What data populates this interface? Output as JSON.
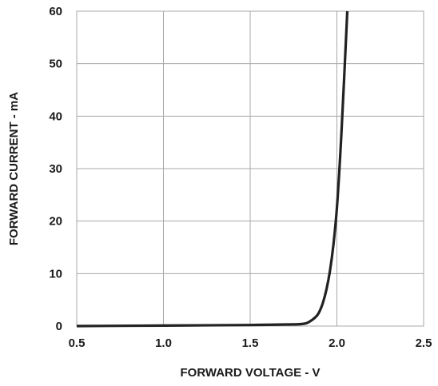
{
  "chart_data": {
    "type": "line",
    "title": "",
    "xlabel": "FORWARD VOLTAGE - V",
    "ylabel": "FORWARD CURRENT - mA",
    "xlim": [
      0.5,
      2.5
    ],
    "ylim": [
      0,
      60
    ],
    "x_ticks": [
      "0.5",
      "1.0",
      "1.5",
      "2.0",
      "2.5"
    ],
    "y_ticks": [
      "0",
      "10",
      "20",
      "30",
      "40",
      "50",
      "60"
    ],
    "grid": true,
    "legend": "none",
    "series": [
      {
        "color": "#222222",
        "x": [
          0.5,
          1.0,
          1.5,
          1.7,
          1.8,
          1.84,
          1.88,
          1.9,
          1.92,
          1.94,
          1.96,
          1.98,
          2.0,
          2.02,
          2.04,
          2.06
        ],
        "y": [
          0.0,
          0.1,
          0.2,
          0.3,
          0.4,
          0.8,
          1.8,
          2.8,
          4.5,
          7.0,
          10.5,
          15.5,
          22.5,
          33.0,
          46.0,
          60.0
        ]
      }
    ]
  }
}
